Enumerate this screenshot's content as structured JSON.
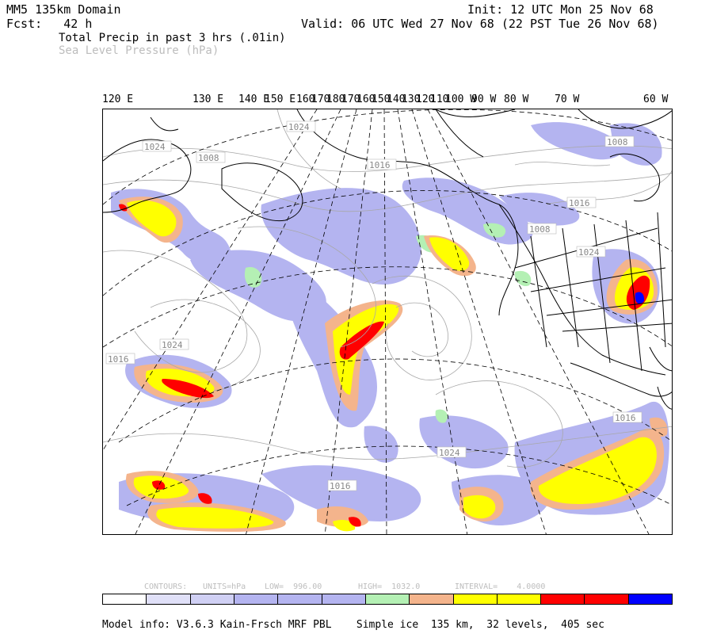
{
  "header": {
    "domain": "MM5 135km Domain",
    "fcst": "Fcst:   42 h",
    "init": "Init: 12 UTC Mon 25 Nov 68",
    "valid": "Valid: 06 UTC Wed 27 Nov 68 (22 PST Tue 26 Nov 68)",
    "field1": "Total Precip in past 3 hrs (.01in)",
    "field2": "Sea Level Pressure (hPa)"
  },
  "lon_labels": [
    "120 E",
    "130 E",
    "140 E",
    "150 E",
    "160",
    "170",
    "180",
    "170",
    "160",
    "150",
    "140",
    "130",
    "120",
    "110",
    "100 W",
    "90 W",
    "80 W",
    "70 W",
    "60 W"
  ],
  "isobar_labels": [
    "1024",
    "1024",
    "1008",
    "1016",
    "1008",
    "1016",
    "1008",
    "1024",
    "1016",
    "1024",
    "1016",
    "1016",
    "1024"
  ],
  "contours": {
    "label": "CONTOURS:",
    "units": "UNITS=hPa",
    "low": "LOW=  996.00",
    "high": "HIGH=  1032.0",
    "interval": "INTERVAL=    4.0000"
  },
  "colorbar": [
    "#ffffff",
    "#e0e0f8",
    "#d0d0f4",
    "#b4b4f0",
    "#b4b4f0",
    "#b4b4f0",
    "#b4f0b4",
    "#f4b48c",
    "#ffff00",
    "#ffff00",
    "#ff0000",
    "#ff0000",
    "#0000ff"
  ],
  "footer": "Model info: V3.6.3 Kain-Frsch MRF PBL    Simple ice  135 km,  32 levels,  405 sec"
}
